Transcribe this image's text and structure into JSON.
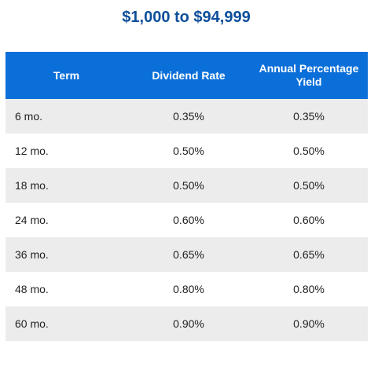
{
  "title": "$1,000 to $94,999",
  "table": {
    "headers": [
      "Term",
      "Dividend Rate",
      "Annual Percentage Yield"
    ],
    "rows": [
      [
        "6 mo.",
        "0.35%",
        "0.35%"
      ],
      [
        "12 mo.",
        "0.50%",
        "0.50%"
      ],
      [
        "18 mo.",
        "0.50%",
        "0.50%"
      ],
      [
        "24 mo.",
        "0.60%",
        "0.60%"
      ],
      [
        "36 mo.",
        "0.65%",
        "0.65%"
      ],
      [
        "48 mo.",
        "0.80%",
        "0.80%"
      ],
      [
        "60 mo.",
        "0.90%",
        "0.90%"
      ]
    ]
  }
}
